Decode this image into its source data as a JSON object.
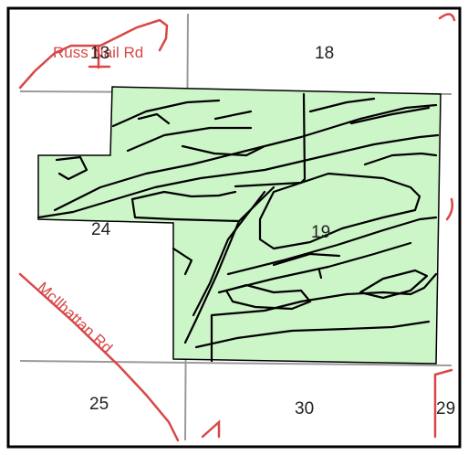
{
  "colors": {
    "parcel_fill": "#ccf5c8",
    "parcel_outline": "#000000",
    "soil_lines": "#000000",
    "section_lines": "#9a9a9a",
    "road": "#d94747",
    "frame": "#000000",
    "background": "#ffffff"
  },
  "sections": {
    "s13": "13",
    "s18": "18",
    "s24": "24",
    "s19": "19",
    "s25": "25",
    "s30": "30",
    "s29": "29"
  },
  "roads": {
    "top_label": "Russ Nail Rd",
    "diag_label": "McIlhattan Rd"
  }
}
